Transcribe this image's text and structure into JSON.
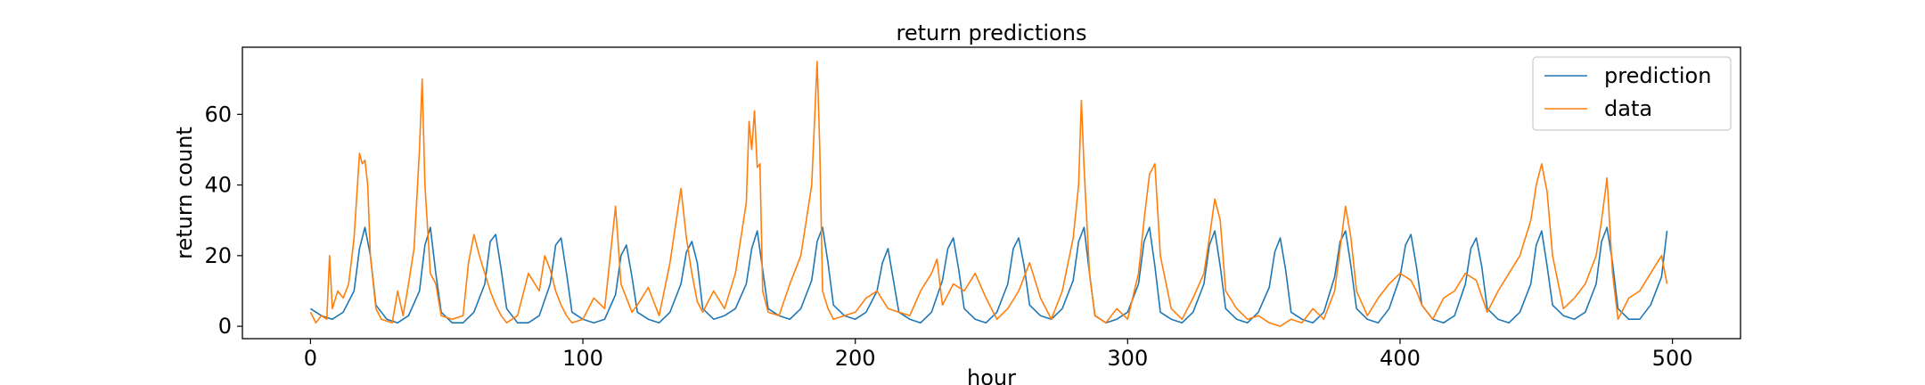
{
  "chart_data": {
    "type": "line",
    "title": "return predictions",
    "xlabel": "hour",
    "ylabel": "return count",
    "xlim": [
      -25,
      525
    ],
    "ylim": [
      -3.5,
      79
    ],
    "xticks": [
      0,
      100,
      200,
      300,
      400,
      500
    ],
    "yticks": [
      0,
      20,
      40,
      60
    ],
    "grid": false,
    "legend_position": "top-right",
    "series": [
      {
        "name": "prediction",
        "color": "#1f77b4",
        "x": [
          0,
          4,
          8,
          12,
          16,
          18,
          20,
          22,
          24,
          28,
          32,
          36,
          40,
          42,
          44,
          46,
          48,
          52,
          56,
          60,
          64,
          66,
          68,
          70,
          72,
          76,
          80,
          84,
          88,
          90,
          92,
          94,
          96,
          100,
          104,
          108,
          112,
          114,
          116,
          118,
          120,
          124,
          128,
          132,
          136,
          138,
          140,
          142,
          144,
          148,
          152,
          156,
          160,
          162,
          164,
          166,
          168,
          172,
          176,
          180,
          184,
          186,
          188,
          190,
          192,
          196,
          200,
          204,
          208,
          210,
          212,
          214,
          216,
          220,
          224,
          228,
          232,
          234,
          236,
          238,
          240,
          244,
          248,
          252,
          256,
          258,
          260,
          262,
          264,
          268,
          272,
          276,
          280,
          282,
          284,
          286,
          288,
          292,
          296,
          300,
          304,
          306,
          308,
          310,
          312,
          316,
          320,
          324,
          328,
          330,
          332,
          334,
          336,
          340,
          344,
          348,
          352,
          354,
          356,
          358,
          360,
          364,
          368,
          372,
          376,
          378,
          380,
          382,
          384,
          388,
          392,
          396,
          400,
          402,
          404,
          406,
          408,
          412,
          416,
          420,
          424,
          426,
          428,
          430,
          432,
          436,
          440,
          444,
          448,
          450,
          452,
          454,
          456,
          460,
          464,
          468,
          472,
          474,
          476,
          478,
          480,
          484,
          488,
          492,
          496,
          498
        ],
        "y": [
          5,
          3,
          2,
          4,
          10,
          22,
          28,
          20,
          6,
          2,
          1,
          3,
          10,
          23,
          28,
          15,
          4,
          1,
          1,
          4,
          12,
          24,
          26,
          16,
          5,
          1,
          1,
          3,
          12,
          23,
          25,
          15,
          4,
          2,
          1,
          2,
          9,
          20,
          23,
          14,
          4,
          2,
          1,
          4,
          12,
          21,
          24,
          18,
          5,
          2,
          3,
          5,
          12,
          22,
          27,
          16,
          5,
          3,
          2,
          5,
          13,
          24,
          28,
          18,
          6,
          3,
          2,
          4,
          10,
          18,
          22,
          13,
          4,
          2,
          1,
          4,
          13,
          22,
          25,
          16,
          5,
          2,
          1,
          4,
          12,
          22,
          25,
          17,
          6,
          3,
          2,
          5,
          13,
          24,
          28,
          15,
          3,
          1,
          2,
          4,
          12,
          24,
          28,
          17,
          4,
          2,
          1,
          4,
          12,
          23,
          27,
          17,
          5,
          2,
          1,
          4,
          11,
          21,
          25,
          16,
          4,
          2,
          1,
          4,
          14,
          24,
          27,
          17,
          5,
          2,
          1,
          5,
          14,
          23,
          26,
          17,
          6,
          2,
          1,
          3,
          12,
          22,
          25,
          17,
          5,
          2,
          1,
          4,
          12,
          23,
          27,
          17,
          6,
          3,
          2,
          4,
          12,
          24,
          28,
          18,
          5,
          2,
          2,
          6,
          14,
          27
        ]
      },
      {
        "name": "data",
        "color": "#ff7f0e",
        "x": [
          0,
          2,
          4,
          6,
          7,
          8,
          10,
          12,
          14,
          16,
          18,
          19,
          20,
          21,
          22,
          24,
          26,
          30,
          32,
          34,
          36,
          38,
          40,
          41,
          42,
          44,
          46,
          48,
          52,
          56,
          58,
          60,
          62,
          64,
          66,
          68,
          70,
          72,
          76,
          80,
          84,
          86,
          88,
          90,
          92,
          94,
          96,
          100,
          104,
          108,
          112,
          114,
          116,
          118,
          120,
          124,
          128,
          132,
          136,
          138,
          140,
          142,
          144,
          148,
          152,
          156,
          160,
          161,
          162,
          163,
          164,
          165,
          166,
          168,
          172,
          176,
          180,
          184,
          186,
          187,
          188,
          190,
          192,
          196,
          200,
          204,
          208,
          212,
          216,
          220,
          224,
          228,
          230,
          232,
          236,
          240,
          244,
          248,
          252,
          256,
          260,
          264,
          268,
          272,
          276,
          280,
          282,
          283,
          284,
          286,
          288,
          292,
          296,
          300,
          304,
          306,
          308,
          310,
          312,
          316,
          320,
          324,
          328,
          330,
          332,
          334,
          336,
          340,
          344,
          348,
          352,
          356,
          360,
          364,
          368,
          372,
          376,
          378,
          380,
          382,
          384,
          388,
          392,
          396,
          400,
          402,
          404,
          406,
          408,
          412,
          416,
          420,
          424,
          428,
          432,
          436,
          440,
          444,
          448,
          450,
          452,
          454,
          456,
          460,
          464,
          468,
          472,
          474,
          476,
          478,
          480,
          484,
          488,
          492,
          496,
          498
        ],
        "y": [
          4,
          1,
          3,
          2,
          20,
          5,
          10,
          8,
          12,
          25,
          49,
          46,
          47,
          40,
          20,
          5,
          2,
          1,
          10,
          3,
          12,
          22,
          50,
          70,
          40,
          15,
          12,
          3,
          2,
          3,
          18,
          26,
          20,
          15,
          10,
          6,
          3,
          1,
          3,
          15,
          10,
          20,
          16,
          10,
          6,
          3,
          1,
          2,
          8,
          5,
          34,
          12,
          8,
          4,
          6,
          11,
          3,
          18,
          39,
          25,
          15,
          7,
          4,
          10,
          5,
          15,
          35,
          58,
          50,
          61,
          45,
          46,
          10,
          4,
          3,
          12,
          20,
          40,
          75,
          50,
          10,
          5,
          2,
          3,
          4,
          8,
          10,
          5,
          4,
          3,
          10,
          15,
          19,
          6,
          12,
          10,
          15,
          8,
          2,
          5,
          10,
          18,
          8,
          2,
          10,
          25,
          40,
          64,
          45,
          15,
          3,
          1,
          5,
          2,
          15,
          30,
          43,
          46,
          20,
          5,
          2,
          8,
          15,
          25,
          36,
          30,
          10,
          5,
          2,
          3,
          1,
          0,
          2,
          1,
          5,
          2,
          10,
          22,
          34,
          25,
          10,
          3,
          8,
          12,
          15,
          14,
          13,
          10,
          6,
          2,
          8,
          10,
          15,
          13,
          4,
          10,
          15,
          20,
          30,
          40,
          46,
          38,
          20,
          5,
          8,
          12,
          20,
          30,
          42,
          15,
          2,
          8,
          10,
          15,
          20,
          12
        ]
      }
    ]
  }
}
